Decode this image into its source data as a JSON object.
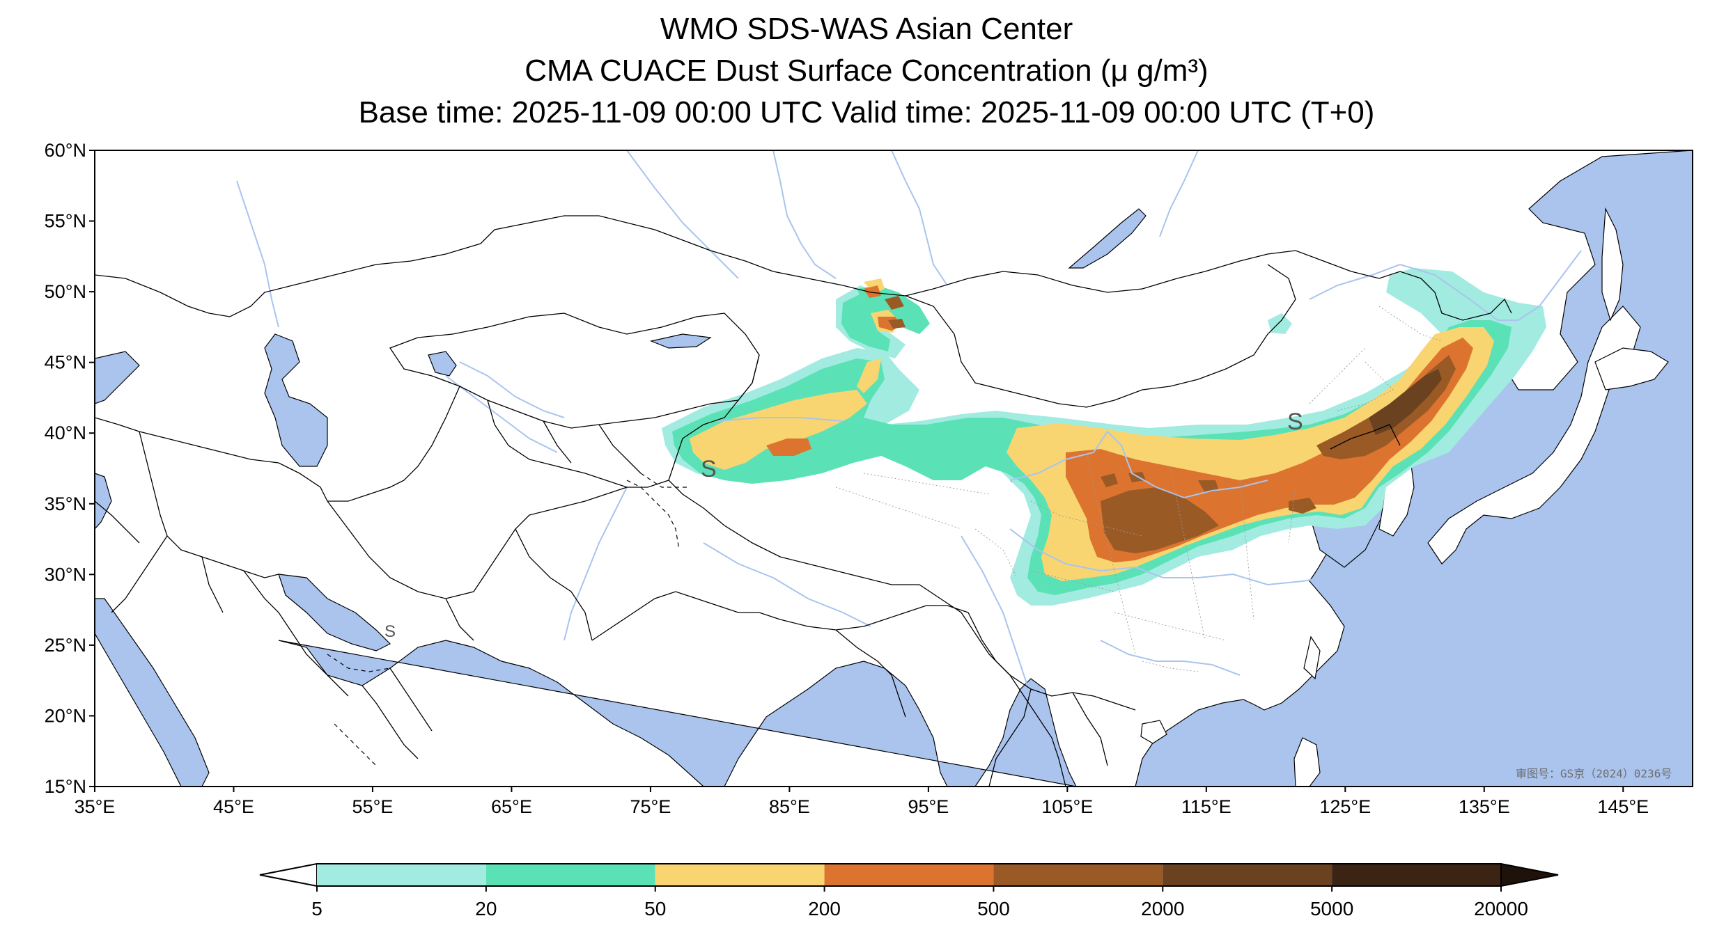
{
  "title": {
    "line1": "WMO SDS-WAS Asian Center",
    "line2": "CMA CUACE Dust Surface Concentration (μ g/m³)",
    "line3": "Base time: 2025-11-09 00:00 UTC Valid time: 2025-11-09 00:00 UTC (T+0)"
  },
  "map": {
    "lon_range": [
      35,
      150
    ],
    "lat_range": [
      15,
      60
    ],
    "lat_ticks": [
      {
        "value": 60,
        "label": "60°N"
      },
      {
        "value": 55,
        "label": "55°N"
      },
      {
        "value": 50,
        "label": "50°N"
      },
      {
        "value": 45,
        "label": "45°N"
      },
      {
        "value": 40,
        "label": "40°N"
      },
      {
        "value": 35,
        "label": "35°N"
      },
      {
        "value": 30,
        "label": "30°N"
      },
      {
        "value": 25,
        "label": "25°N"
      },
      {
        "value": 20,
        "label": "20°N"
      },
      {
        "value": 15,
        "label": "15°N"
      }
    ],
    "lon_ticks": [
      {
        "value": 35,
        "label": "35°E"
      },
      {
        "value": 45,
        "label": "45°E"
      },
      {
        "value": 55,
        "label": "55°E"
      },
      {
        "value": 65,
        "label": "65°E"
      },
      {
        "value": 75,
        "label": "75°E"
      },
      {
        "value": 85,
        "label": "85°E"
      },
      {
        "value": 95,
        "label": "95°E"
      },
      {
        "value": 105,
        "label": "105°E"
      },
      {
        "value": 115,
        "label": "115°E"
      },
      {
        "value": 125,
        "label": "125°E"
      },
      {
        "value": 135,
        "label": "135°E"
      },
      {
        "value": 145,
        "label": "145°E"
      }
    ],
    "approval_text": "审图号：GS京（2024）0236号",
    "colors": {
      "ocean": "#aac4ee",
      "land": "#ffffff",
      "border": "#000000",
      "river": "#aac4ee"
    },
    "marks": [
      {
        "text": "S",
        "lon": 78.2,
        "lat": 37.3
      },
      {
        "text": "S",
        "lon": 119.5,
        "lat": 40.7
      },
      {
        "text": "S",
        "lon": 55.9,
        "lat": 25.7
      }
    ]
  },
  "colorbar": {
    "levels": [
      "5",
      "20",
      "50",
      "200",
      "500",
      "2000",
      "5000",
      "20000"
    ],
    "colors": [
      "#a2ebe0",
      "#5ae2b6",
      "#f8d571",
      "#dc742f",
      "#9a5a26",
      "#6b4220",
      "#3b2413"
    ],
    "under_color": "#ffffff",
    "over_color": "#1e120b"
  }
}
